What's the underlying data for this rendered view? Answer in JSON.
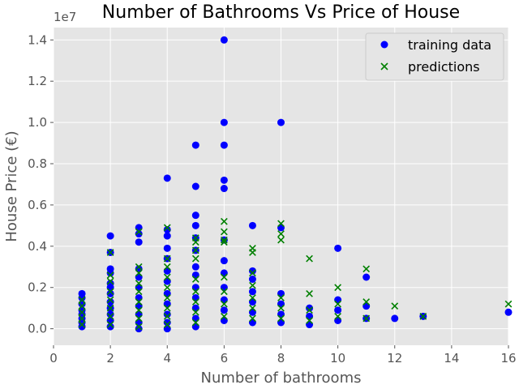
{
  "chart_data": {
    "type": "scatter",
    "title": "Number of Bathrooms Vs Price of House",
    "xlabel": "Number of bathrooms",
    "ylabel": "House Price (€)",
    "y_offset_label": "1e7",
    "xlim": [
      0,
      16
    ],
    "ylim": [
      -0.08,
      1.46
    ],
    "y_multiplier": 10000000,
    "x_ticks": [
      0,
      2,
      4,
      6,
      8,
      10,
      12,
      14,
      16
    ],
    "y_ticks": [
      0.0,
      0.2,
      0.4,
      0.6,
      0.8,
      1.0,
      1.2,
      1.4
    ],
    "x_tick_labels": [
      "0",
      "2",
      "4",
      "6",
      "8",
      "10",
      "12",
      "14",
      "16"
    ],
    "y_tick_labels": [
      "0.0",
      "0.2",
      "0.4",
      "0.6",
      "0.8",
      "1.0",
      "1.2",
      "1.4"
    ],
    "grid": true,
    "legend_position": "top-right",
    "series": [
      {
        "name": "training data",
        "marker": "circle",
        "color": "#0000ff",
        "points": [
          [
            1,
            0.01
          ],
          [
            1,
            0.03
          ],
          [
            1,
            0.05
          ],
          [
            1,
            0.07
          ],
          [
            1,
            0.09
          ],
          [
            1,
            0.12
          ],
          [
            1,
            0.15
          ],
          [
            1,
            0.17
          ],
          [
            2,
            0.01
          ],
          [
            2,
            0.04
          ],
          [
            2,
            0.07
          ],
          [
            2,
            0.1
          ],
          [
            2,
            0.13
          ],
          [
            2,
            0.17
          ],
          [
            2,
            0.2
          ],
          [
            2,
            0.22
          ],
          [
            2,
            0.27
          ],
          [
            2,
            0.29
          ],
          [
            2,
            0.37
          ],
          [
            2,
            0.45
          ],
          [
            3,
            0.0
          ],
          [
            3,
            0.03
          ],
          [
            3,
            0.07
          ],
          [
            3,
            0.11
          ],
          [
            3,
            0.15
          ],
          [
            3,
            0.2
          ],
          [
            3,
            0.25
          ],
          [
            3,
            0.29
          ],
          [
            3,
            0.42
          ],
          [
            3,
            0.46
          ],
          [
            3,
            0.49
          ],
          [
            4,
            0.0
          ],
          [
            4,
            0.03
          ],
          [
            4,
            0.07
          ],
          [
            4,
            0.12
          ],
          [
            4,
            0.17
          ],
          [
            4,
            0.23
          ],
          [
            4,
            0.28
          ],
          [
            4,
            0.34
          ],
          [
            4,
            0.39
          ],
          [
            4,
            0.45
          ],
          [
            4,
            0.48
          ],
          [
            4,
            0.73
          ],
          [
            5,
            0.01
          ],
          [
            5,
            0.05
          ],
          [
            5,
            0.1
          ],
          [
            5,
            0.15
          ],
          [
            5,
            0.2
          ],
          [
            5,
            0.26
          ],
          [
            5,
            0.3
          ],
          [
            5,
            0.38
          ],
          [
            5,
            0.44
          ],
          [
            5,
            0.5
          ],
          [
            5,
            0.55
          ],
          [
            5,
            0.69
          ],
          [
            5,
            0.89
          ],
          [
            6,
            0.04
          ],
          [
            6,
            0.09
          ],
          [
            6,
            0.14
          ],
          [
            6,
            0.2
          ],
          [
            6,
            0.27
          ],
          [
            6,
            0.33
          ],
          [
            6,
            0.43
          ],
          [
            6,
            0.68
          ],
          [
            6,
            0.72
          ],
          [
            6,
            0.89
          ],
          [
            6,
            1.0
          ],
          [
            6,
            1.4
          ],
          [
            7,
            0.03
          ],
          [
            7,
            0.08
          ],
          [
            7,
            0.13
          ],
          [
            7,
            0.18
          ],
          [
            7,
            0.24
          ],
          [
            7,
            0.28
          ],
          [
            7,
            0.5
          ],
          [
            8,
            0.03
          ],
          [
            8,
            0.07
          ],
          [
            8,
            0.12
          ],
          [
            8,
            0.17
          ],
          [
            8,
            0.49
          ],
          [
            8,
            1.0
          ],
          [
            9,
            0.02
          ],
          [
            9,
            0.06
          ],
          [
            9,
            0.1
          ],
          [
            10,
            0.04
          ],
          [
            10,
            0.09
          ],
          [
            10,
            0.14
          ],
          [
            10,
            0.39
          ],
          [
            11,
            0.05
          ],
          [
            11,
            0.11
          ],
          [
            11,
            0.25
          ],
          [
            12,
            0.05
          ],
          [
            13,
            0.06
          ],
          [
            16,
            0.08
          ]
        ]
      },
      {
        "name": "predictions",
        "marker": "x",
        "color": "#008000",
        "points": [
          [
            1,
            0.02
          ],
          [
            1,
            0.05
          ],
          [
            1,
            0.08
          ],
          [
            1,
            0.11
          ],
          [
            1,
            0.14
          ],
          [
            2,
            0.02
          ],
          [
            2,
            0.06
          ],
          [
            2,
            0.1
          ],
          [
            2,
            0.14
          ],
          [
            2,
            0.18
          ],
          [
            2,
            0.23
          ],
          [
            2,
            0.26
          ],
          [
            2,
            0.37
          ],
          [
            3,
            0.01
          ],
          [
            3,
            0.05
          ],
          [
            3,
            0.09
          ],
          [
            3,
            0.13
          ],
          [
            3,
            0.18
          ],
          [
            3,
            0.22
          ],
          [
            3,
            0.27
          ],
          [
            3,
            0.3
          ],
          [
            3,
            0.47
          ],
          [
            4,
            0.02
          ],
          [
            4,
            0.06
          ],
          [
            4,
            0.1
          ],
          [
            4,
            0.15
          ],
          [
            4,
            0.2
          ],
          [
            4,
            0.25
          ],
          [
            4,
            0.3
          ],
          [
            4,
            0.34
          ],
          [
            4,
            0.49
          ],
          [
            5,
            0.03
          ],
          [
            5,
            0.08
          ],
          [
            5,
            0.13
          ],
          [
            5,
            0.18
          ],
          [
            5,
            0.24
          ],
          [
            5,
            0.34
          ],
          [
            5,
            0.38
          ],
          [
            5,
            0.42
          ],
          [
            5,
            0.44
          ],
          [
            6,
            0.06
          ],
          [
            6,
            0.12
          ],
          [
            6,
            0.18
          ],
          [
            6,
            0.25
          ],
          [
            6,
            0.42
          ],
          [
            6,
            0.43
          ],
          [
            6,
            0.47
          ],
          [
            6,
            0.52
          ],
          [
            7,
            0.05
          ],
          [
            7,
            0.1
          ],
          [
            7,
            0.15
          ],
          [
            7,
            0.21
          ],
          [
            7,
            0.27
          ],
          [
            7,
            0.37
          ],
          [
            7,
            0.39
          ],
          [
            8,
            0.05
          ],
          [
            8,
            0.1
          ],
          [
            8,
            0.15
          ],
          [
            8,
            0.43
          ],
          [
            8,
            0.46
          ],
          [
            8,
            0.51
          ],
          [
            9,
            0.04
          ],
          [
            9,
            0.09
          ],
          [
            9,
            0.17
          ],
          [
            9,
            0.34
          ],
          [
            10,
            0.06
          ],
          [
            10,
            0.12
          ],
          [
            10,
            0.2
          ],
          [
            11,
            0.05
          ],
          [
            11,
            0.13
          ],
          [
            11,
            0.29
          ],
          [
            12,
            0.11
          ],
          [
            13,
            0.06
          ],
          [
            16,
            0.12
          ]
        ]
      }
    ]
  }
}
